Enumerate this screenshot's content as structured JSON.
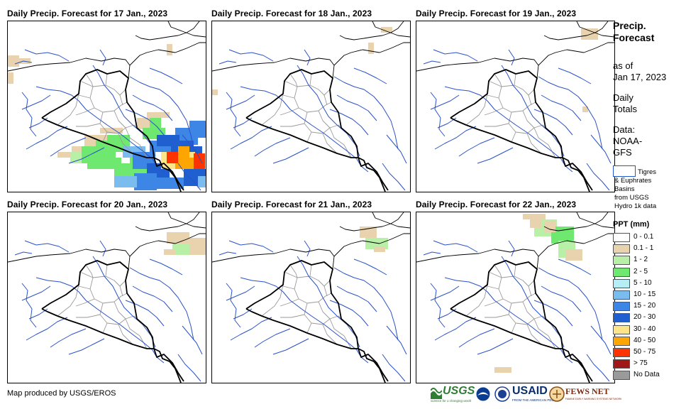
{
  "panels": [
    {
      "title": "Daily Precip. Forecast for 17 Jan., 2023"
    },
    {
      "title": "Daily Precip. Forecast for 18 Jan., 2023"
    },
    {
      "title": "Daily Precip. Forecast for 19 Jan., 2023"
    },
    {
      "title": "Daily Precip. Forecast for 20 Jan., 2023"
    },
    {
      "title": "Daily Precip. Forecast for 21 Jan., 2023"
    },
    {
      "title": "Daily Precip. Forecast for 22 Jan., 2023"
    }
  ],
  "side": {
    "title_line1": "Precip.",
    "title_line2": "Forecast",
    "asof_line1": "as of",
    "asof_line2": "Jan 17, 2023",
    "daily_line1": "Daily",
    "daily_line2": "Totals",
    "data_line1": "Data:",
    "data_line2": "NOAA-",
    "data_line3": "GFS",
    "basin_line1": "Tigres",
    "basin_line2": "& Euphrates",
    "basin_line3": "Basins",
    "basin_line4": "from USGS",
    "basin_line5": "Hydro 1k data"
  },
  "legend": {
    "title": "PPT (mm)",
    "items": [
      {
        "label": "0 - 0.1",
        "color": "#ffffff"
      },
      {
        "label": "0.1 - 1",
        "color": "#e8d3ae"
      },
      {
        "label": "1 - 2",
        "color": "#b8f0a8"
      },
      {
        "label": "2 - 5",
        "color": "#6ee86e"
      },
      {
        "label": "5 - 10",
        "color": "#b5eef5"
      },
      {
        "label": "10 - 15",
        "color": "#7bbcef"
      },
      {
        "label": "15 - 20",
        "color": "#3d86e6"
      },
      {
        "label": "20 - 30",
        "color": "#1f5fd0"
      },
      {
        "label": "30 - 40",
        "color": "#ffe58a"
      },
      {
        "label": "40 - 50",
        "color": "#ffa500"
      },
      {
        "label": "50 - 75",
        "color": "#ff3300"
      },
      {
        "label": "> 75",
        "color": "#a01818"
      },
      {
        "label": "No Data",
        "color": "#9a9a9a"
      }
    ]
  },
  "footer": {
    "credit": "Map produced by USGS/EROS",
    "logo_usgs": "USGS",
    "logo_usgs_tag": "science for a changing world",
    "logo_usaid": "USAID",
    "logo_usaid_tag": "FROM THE AMERICAN PEOPLE",
    "logo_fews": "FEWS NET",
    "logo_fews_tag": "FAMINE EARLY WARNING SYSTEMS NETWORK"
  }
}
